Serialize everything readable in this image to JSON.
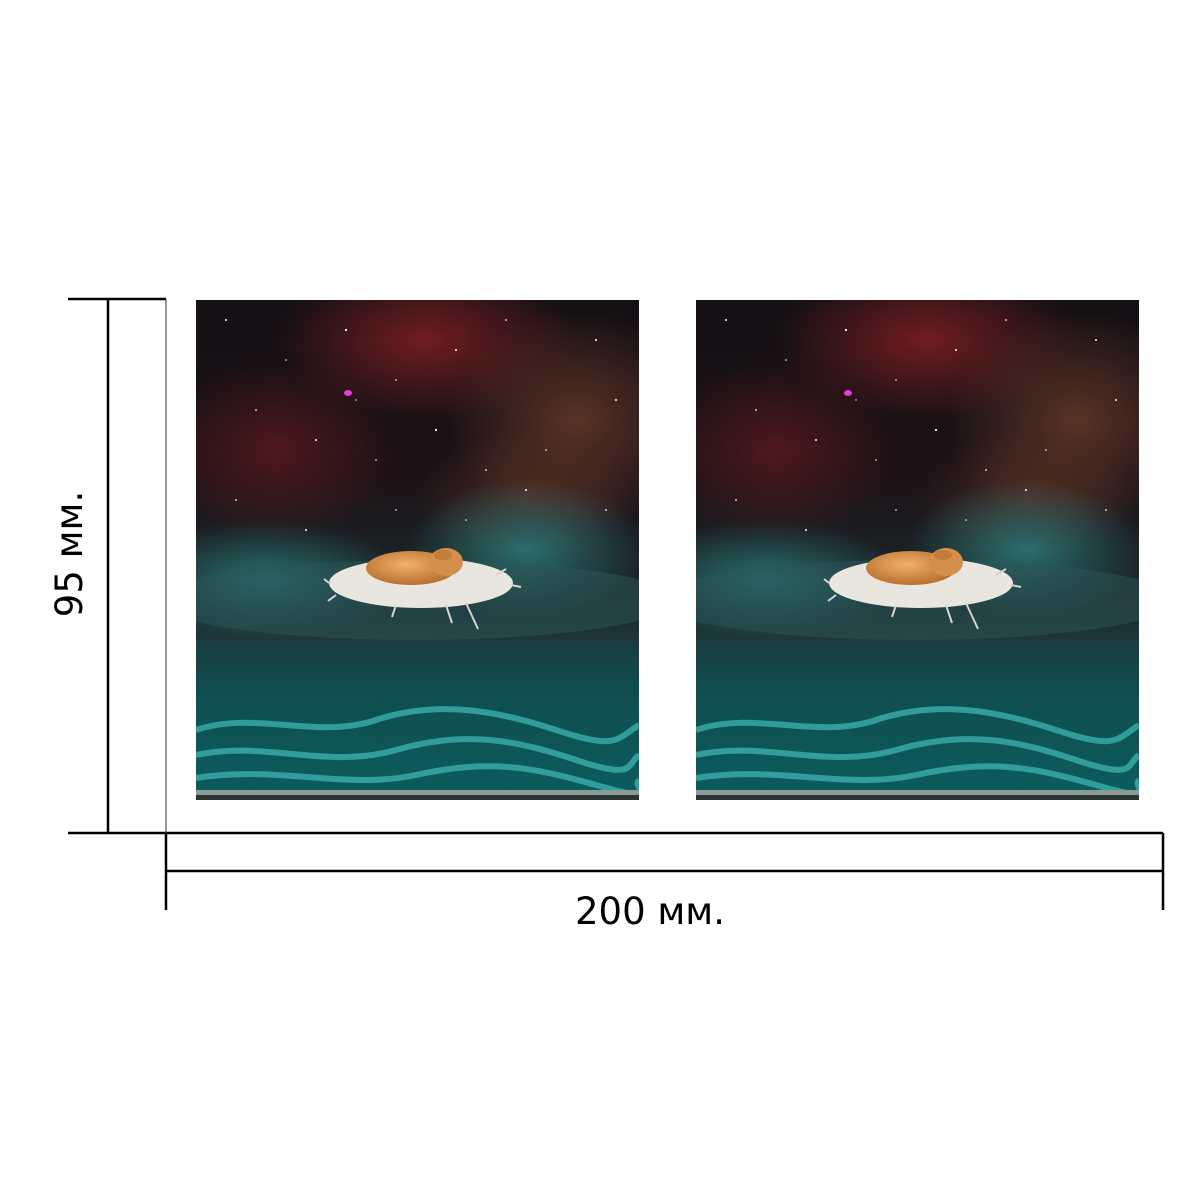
{
  "dimensions": {
    "width_label": "200 мм.",
    "height_label": "95 мм."
  },
  "panels": [
    {
      "position": "left",
      "description_icon": "cat-on-feather-space-sea-icon"
    },
    {
      "position": "right",
      "description_icon": "cat-on-feather-space-sea-icon"
    }
  ],
  "colors": {
    "lines": "#000000",
    "sky_top": "#130f14",
    "nebula_red": "#5a1f22",
    "nebula_teal": "#1f5a5a",
    "sea": "#0f4a4a",
    "sea_light": "#2fa3a0",
    "cat": "#d8914a",
    "feather": "#e9e6df"
  }
}
